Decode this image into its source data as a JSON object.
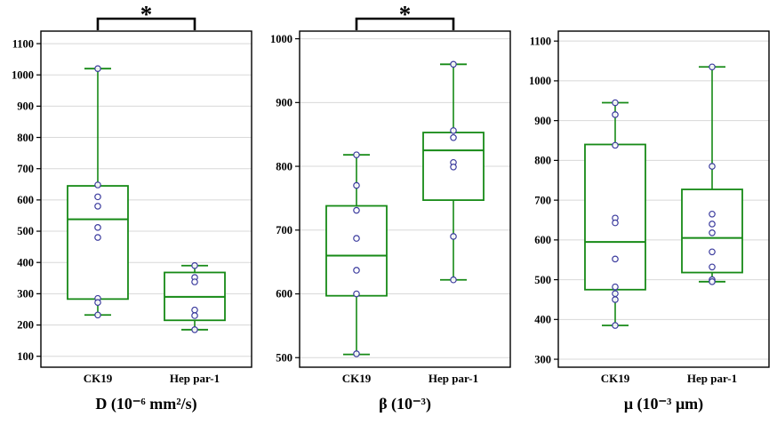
{
  "style": {
    "box_color": "#168a16",
    "point_color": "#3c3c9e",
    "grid_color": "#d8d8d8",
    "axis_color": "#000000",
    "background": "#ffffff"
  },
  "chart_data": [
    {
      "type": "boxplot",
      "title": "D (10⁻⁶ mm²/s)",
      "categories": [
        "CK19",
        "Hep par-1"
      ],
      "ylim": [
        65,
        1140
      ],
      "yticks": [
        100,
        200,
        300,
        400,
        500,
        600,
        700,
        800,
        900,
        1000,
        1100
      ],
      "grid": true,
      "legend": false,
      "significance": {
        "between": [
          "CK19",
          "Hep par-1"
        ],
        "label": "*"
      },
      "series": [
        {
          "name": "CK19",
          "whisker_low": 232,
          "q1": 283,
          "median": 538,
          "q3": 645,
          "whisker_high": 1020,
          "points": [
            1020,
            648,
            610,
            580,
            512,
            480,
            285,
            272,
            232
          ]
        },
        {
          "name": "Hep par-1",
          "whisker_low": 185,
          "q1": 215,
          "median": 290,
          "q3": 368,
          "whisker_high": 390,
          "points": [
            390,
            352,
            338,
            248,
            230,
            185
          ]
        }
      ]
    },
    {
      "type": "boxplot",
      "title": "β (10⁻³)",
      "categories": [
        "CK19",
        "Hep par-1"
      ],
      "ylim": [
        485,
        1012
      ],
      "yticks": [
        500,
        600,
        700,
        800,
        900,
        1000
      ],
      "grid": true,
      "legend": false,
      "significance": {
        "between": [
          "CK19",
          "Hep par-1"
        ],
        "label": "*"
      },
      "series": [
        {
          "name": "CK19",
          "whisker_low": 505,
          "q1": 597,
          "median": 660,
          "q3": 738,
          "whisker_high": 818,
          "points": [
            818,
            770,
            731,
            687,
            637,
            600,
            506
          ]
        },
        {
          "name": "Hep par-1",
          "whisker_low": 622,
          "q1": 747,
          "median": 825,
          "q3": 853,
          "whisker_high": 960,
          "points": [
            960,
            856,
            845,
            806,
            799,
            690,
            622
          ]
        }
      ]
    },
    {
      "type": "boxplot",
      "title": "μ (10⁻³ μm)",
      "categories": [
        "CK19",
        "Hep par-1"
      ],
      "ylim": [
        280,
        1125
      ],
      "yticks": [
        300,
        400,
        500,
        600,
        700,
        800,
        900,
        1000,
        1100
      ],
      "grid": true,
      "legend": false,
      "significance": null,
      "series": [
        {
          "name": "CK19",
          "whisker_low": 385,
          "q1": 475,
          "median": 595,
          "q3": 840,
          "whisker_high": 945,
          "points": [
            945,
            915,
            838,
            655,
            643,
            552,
            482,
            465,
            450,
            385
          ]
        },
        {
          "name": "Hep par-1",
          "whisker_low": 495,
          "q1": 518,
          "median": 605,
          "q3": 727,
          "whisker_high": 1035,
          "points": [
            1035,
            785,
            665,
            640,
            618,
            570,
            532,
            500,
            495
          ]
        }
      ]
    }
  ]
}
